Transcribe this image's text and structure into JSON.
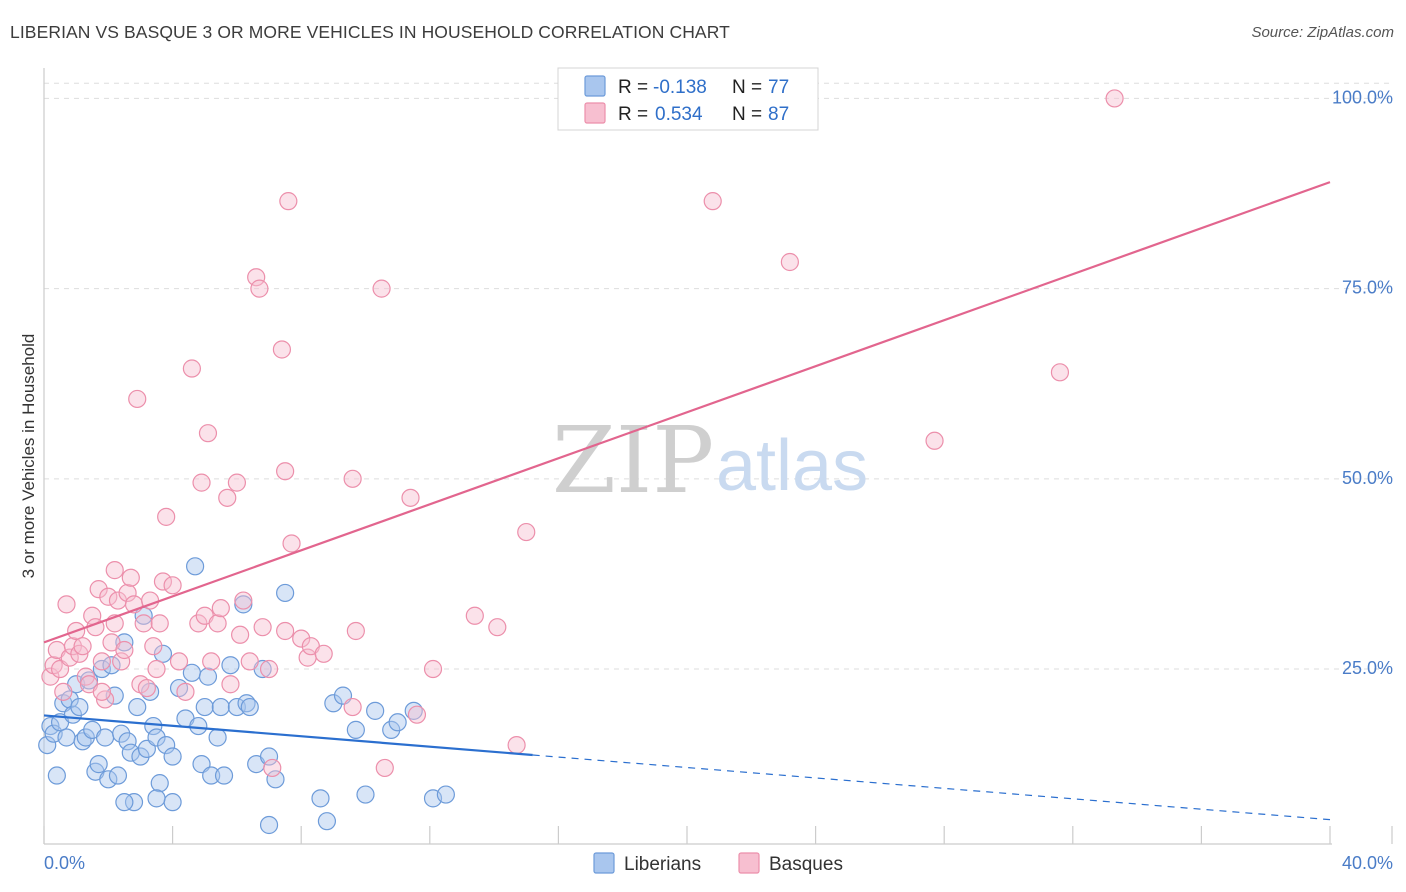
{
  "title": "LIBERIAN VS BASQUE 3 OR MORE VEHICLES IN HOUSEHOLD CORRELATION CHART",
  "source": "Source: ZipAtlas.com",
  "watermark": {
    "zip": "ZIP",
    "atlas": "atlas"
  },
  "colors": {
    "liberian_fill": "#a9c6ee",
    "liberian_stroke": "#6d9bd9",
    "liberian_line": "#2b6fcf",
    "basque_fill": "#f7bfd0",
    "basque_stroke": "#ec8fab",
    "basque_line": "#e2658e",
    "grid": "#dddddd",
    "tick": "#4a7cc7"
  },
  "legend": {
    "r_label": "R =",
    "n_label": "N =",
    "liberian": {
      "r": "-0.138",
      "n": "77"
    },
    "basque": {
      "r": "0.534",
      "n": "87"
    }
  },
  "bottom_legend": {
    "liberian": "Liberians",
    "basque": "Basques"
  },
  "chart_data": {
    "type": "scatter",
    "title": "LIBERIAN VS BASQUE 3 OR MORE VEHICLES IN HOUSEHOLD CORRELATION CHART",
    "xlabel": "",
    "ylabel": "3 or more Vehicles in Household",
    "xlim": [
      0,
      40
    ],
    "ylim": [
      2,
      104
    ],
    "x_tick_labels": [
      "0.0%",
      "40.0%"
    ],
    "y_ticks": [
      25,
      50,
      75,
      100
    ],
    "y_tick_labels": [
      "25.0%",
      "50.0%",
      "75.0%",
      "100.0%"
    ],
    "series": [
      {
        "name": "Liberians",
        "r": -0.138,
        "n": 77,
        "trend": {
          "x0": 0,
          "y0": 18.9,
          "x1": 15.2,
          "y1": 13.7,
          "x_dash_end": 40,
          "y_dash_end": 5.2
        },
        "points": [
          [
            0.1,
            15
          ],
          [
            0.2,
            17.5
          ],
          [
            0.3,
            16.5
          ],
          [
            0.4,
            11
          ],
          [
            0.5,
            18
          ],
          [
            0.6,
            20.5
          ],
          [
            0.7,
            16
          ],
          [
            0.8,
            21
          ],
          [
            0.9,
            19
          ],
          [
            1.0,
            23
          ],
          [
            1.1,
            20
          ],
          [
            1.2,
            15.5
          ],
          [
            1.3,
            16
          ],
          [
            1.4,
            23.5
          ],
          [
            1.5,
            17
          ],
          [
            1.6,
            11.5
          ],
          [
            1.7,
            12.5
          ],
          [
            1.8,
            25
          ],
          [
            1.9,
            16
          ],
          [
            2.0,
            10.5
          ],
          [
            2.1,
            25.5
          ],
          [
            2.2,
            21.5
          ],
          [
            2.3,
            11
          ],
          [
            2.4,
            16.5
          ],
          [
            2.5,
            28.5
          ],
          [
            2.6,
            15.5
          ],
          [
            2.7,
            14
          ],
          [
            2.8,
            7.5
          ],
          [
            2.9,
            20
          ],
          [
            3.0,
            13.5
          ],
          [
            3.1,
            32
          ],
          [
            3.2,
            14.5
          ],
          [
            3.3,
            22
          ],
          [
            3.4,
            17.5
          ],
          [
            3.5,
            16
          ],
          [
            3.6,
            10
          ],
          [
            3.7,
            27
          ],
          [
            3.8,
            15
          ],
          [
            4.0,
            13.5
          ],
          [
            4.2,
            22.5
          ],
          [
            4.4,
            18.5
          ],
          [
            4.6,
            24.5
          ],
          [
            4.7,
            38.5
          ],
          [
            4.8,
            17.5
          ],
          [
            4.9,
            12.5
          ],
          [
            5.0,
            20
          ],
          [
            5.1,
            24
          ],
          [
            5.2,
            11
          ],
          [
            5.4,
            16
          ],
          [
            5.5,
            20
          ],
          [
            5.6,
            11
          ],
          [
            5.8,
            25.5
          ],
          [
            6.0,
            20
          ],
          [
            6.2,
            33.5
          ],
          [
            6.3,
            20.5
          ],
          [
            6.4,
            20
          ],
          [
            6.6,
            12.5
          ],
          [
            6.8,
            25
          ],
          [
            7.0,
            13.5
          ],
          [
            7.2,
            10.5
          ],
          [
            7.5,
            35
          ],
          [
            7.0,
            4.5
          ],
          [
            8.6,
            8
          ],
          [
            8.8,
            5
          ],
          [
            9.0,
            20.5
          ],
          [
            9.3,
            21.5
          ],
          [
            9.7,
            17
          ],
          [
            10.0,
            8.5
          ],
          [
            11.5,
            19.5
          ],
          [
            10.3,
            19.5
          ],
          [
            10.8,
            17
          ],
          [
            11.0,
            18
          ],
          [
            12.1,
            8
          ],
          [
            12.5,
            8.5
          ],
          [
            4.0,
            7.5
          ],
          [
            3.5,
            8
          ],
          [
            2.5,
            7.5
          ]
        ]
      },
      {
        "name": "Basques",
        "r": 0.534,
        "n": 87,
        "trend": {
          "x0": 0,
          "y0": 28.5,
          "x1": 40,
          "y1": 89
        },
        "points": [
          [
            0.2,
            24
          ],
          [
            0.3,
            25.5
          ],
          [
            0.4,
            27.5
          ],
          [
            0.5,
            25
          ],
          [
            0.6,
            22
          ],
          [
            0.7,
            33.5
          ],
          [
            0.8,
            26.5
          ],
          [
            0.9,
            28
          ],
          [
            1.0,
            30
          ],
          [
            1.1,
            27
          ],
          [
            1.2,
            28
          ],
          [
            1.3,
            24
          ],
          [
            1.4,
            23
          ],
          [
            1.5,
            32
          ],
          [
            1.6,
            30.5
          ],
          [
            1.7,
            35.5
          ],
          [
            1.8,
            26
          ],
          [
            1.9,
            21
          ],
          [
            2.0,
            34.5
          ],
          [
            2.1,
            28.5
          ],
          [
            2.2,
            38
          ],
          [
            2.3,
            34
          ],
          [
            2.4,
            26
          ],
          [
            2.5,
            27.5
          ],
          [
            2.6,
            35
          ],
          [
            2.7,
            37
          ],
          [
            2.8,
            33.5
          ],
          [
            2.9,
            60.5
          ],
          [
            3.0,
            23
          ],
          [
            3.1,
            31
          ],
          [
            3.2,
            22.5
          ],
          [
            3.3,
            34
          ],
          [
            3.4,
            28
          ],
          [
            3.5,
            25
          ],
          [
            3.6,
            31
          ],
          [
            3.7,
            36.5
          ],
          [
            3.8,
            45
          ],
          [
            4.0,
            36
          ],
          [
            4.2,
            26
          ],
          [
            4.4,
            22
          ],
          [
            4.6,
            64.5
          ],
          [
            4.8,
            31
          ],
          [
            4.9,
            49.5
          ],
          [
            5.0,
            32
          ],
          [
            5.1,
            56
          ],
          [
            5.2,
            26
          ],
          [
            5.4,
            31
          ],
          [
            5.5,
            33
          ],
          [
            5.7,
            47.5
          ],
          [
            5.8,
            23
          ],
          [
            6.0,
            49.5
          ],
          [
            6.1,
            29.5
          ],
          [
            6.2,
            34
          ],
          [
            6.4,
            26
          ],
          [
            6.6,
            76.5
          ],
          [
            6.7,
            75
          ],
          [
            6.8,
            30.5
          ],
          [
            7.0,
            25
          ],
          [
            7.1,
            12
          ],
          [
            7.4,
            67
          ],
          [
            7.5,
            30
          ],
          [
            7.5,
            51
          ],
          [
            7.6,
            86.5
          ],
          [
            7.7,
            41.5
          ],
          [
            8.0,
            29
          ],
          [
            8.2,
            26.5
          ],
          [
            8.3,
            28
          ],
          [
            8.7,
            27
          ],
          [
            9.6,
            20
          ],
          [
            9.7,
            30
          ],
          [
            9.6,
            50
          ],
          [
            10.5,
            75
          ],
          [
            10.6,
            12
          ],
          [
            11.4,
            47.5
          ],
          [
            11.6,
            19
          ],
          [
            12.1,
            25
          ],
          [
            13.4,
            32
          ],
          [
            14.1,
            30.5
          ],
          [
            14.7,
            15
          ],
          [
            15.0,
            43
          ],
          [
            20.8,
            86.5
          ],
          [
            23.2,
            78.5
          ],
          [
            27.7,
            55
          ],
          [
            31.6,
            64
          ],
          [
            33.3,
            100
          ],
          [
            2.2,
            31
          ],
          [
            1.8,
            22
          ]
        ]
      }
    ]
  }
}
